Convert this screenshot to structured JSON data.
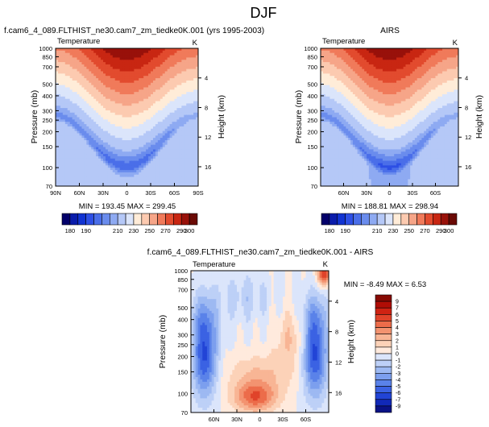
{
  "page": {
    "title": "DJF",
    "stats_label": "MIN = {min}   MAX = {max}"
  },
  "chart_data": [
    {
      "id": "model",
      "type": "heatmap",
      "title": "f.cam6_4_089.FLTHIST_ne30.cam7_zm_tiedke0K.001 (yrs 1995-2003)",
      "left_string": "Temperature",
      "right_string": "K",
      "xlabel": "",
      "ylabel": "Pressure (mb)",
      "ylabel_right": "Height (km)",
      "xlim": [
        90,
        -90
      ],
      "x_tick_values": [
        90,
        60,
        30,
        0,
        -30,
        -60,
        -90
      ],
      "x_tick_labels": [
        "90N",
        "60N",
        "30N",
        "0",
        "30S",
        "60S",
        "90S"
      ],
      "y_scale": "log",
      "ylim": [
        1000,
        70
      ],
      "y_ticks": [
        70,
        100,
        150,
        200,
        250,
        300,
        400,
        500,
        700,
        850,
        1000
      ],
      "height_ticks": [
        4,
        8,
        12,
        16
      ],
      "min": "193.45",
      "max": "299.45",
      "colorbar": {
        "levels": [
          180,
          185,
          190,
          195,
          200,
          205,
          210,
          220,
          230,
          240,
          250,
          260,
          270,
          280,
          290,
          300
        ],
        "labels": [
          "180",
          "190",
          "210",
          "230",
          "250",
          "270",
          "290",
          "300"
        ],
        "colors": [
          "#03006a",
          "#0a1cab",
          "#1133d2",
          "#2d4fe5",
          "#4a6ee9",
          "#6a8ced",
          "#8eaaf2",
          "#b5c8f7",
          "#dbe5fb",
          "#ffecd8",
          "#fccab0",
          "#f6a588",
          "#f07a5a",
          "#e24b2e",
          "#c82612",
          "#98110a",
          "#6a0a05"
        ]
      }
    },
    {
      "id": "obs",
      "type": "heatmap",
      "title": "AIRS",
      "left_string": "Temperature",
      "right_string": "K",
      "xlabel": "",
      "ylabel": "Pressure (mb)",
      "ylabel_right": "Height (km)",
      "xlim": [
        90,
        -90
      ],
      "x_tick_values": [
        60,
        30,
        0,
        -30,
        -60
      ],
      "x_tick_labels": [
        "60N",
        "30N",
        "0",
        "30S",
        "60S"
      ],
      "y_scale": "log",
      "ylim": [
        1000,
        70
      ],
      "y_ticks": [
        70,
        100,
        150,
        200,
        250,
        300,
        400,
        500,
        700,
        850,
        1000
      ],
      "height_ticks": [
        4,
        8,
        12,
        16
      ],
      "min": "188.81",
      "max": "298.94",
      "colorbar": "shared-with-model"
    },
    {
      "id": "diff",
      "type": "heatmap",
      "title": "f.cam6_4_089.FLTHIST_ne30.cam7_zm_tiedke0K.001 - AIRS",
      "left_string": "Temperature",
      "right_string": "K",
      "xlabel": "",
      "ylabel": "Pressure (mb)",
      "ylabel_right": "Height (km)",
      "xlim": [
        90,
        -90
      ],
      "x_tick_values": [
        60,
        30,
        0,
        -30,
        -60
      ],
      "x_tick_labels": [
        "60N",
        "30N",
        "0",
        "30S",
        "60S"
      ],
      "y_scale": "log",
      "ylim": [
        1000,
        70
      ],
      "y_ticks": [
        70,
        100,
        150,
        200,
        250,
        300,
        400,
        500,
        700,
        850,
        1000
      ],
      "height_ticks": [
        4,
        8,
        12,
        16
      ],
      "min": "-8.49",
      "max": "6.53",
      "colorbar": {
        "orientation": "vertical",
        "levels": [
          -9,
          -7,
          -6,
          -5,
          -4,
          -3,
          -2,
          -1,
          0,
          1,
          2,
          3,
          4,
          5,
          6,
          7,
          9
        ],
        "labels": [
          "-9",
          "-7",
          "-6",
          "-5",
          "-4",
          "-3",
          "-2",
          "-1",
          "0",
          "1",
          "2",
          "3",
          "4",
          "5",
          "6",
          "7",
          "9"
        ],
        "colors": [
          "#0a1285",
          "#1129b8",
          "#2244d6",
          "#3b62e3",
          "#5a82e9",
          "#7c9fee",
          "#9db9f2",
          "#bdd0f7",
          "#dbe5fb",
          "#ffeadd",
          "#fcd2b8",
          "#f8b595",
          "#f39370",
          "#ec6c4a",
          "#e0432a",
          "#cf2313",
          "#b00d05",
          "#870a03"
        ]
      }
    }
  ]
}
